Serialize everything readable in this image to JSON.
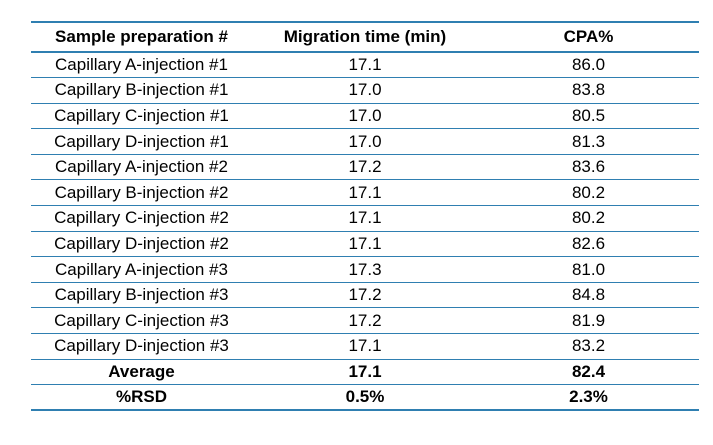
{
  "table": {
    "headers": [
      "Sample preparation #",
      "Migration time (min)",
      "CPA%"
    ],
    "rows": [
      [
        "Capillary A-injection #1",
        "17.1",
        "86.0"
      ],
      [
        "Capillary B-injection #1",
        "17.0",
        "83.8"
      ],
      [
        "Capillary C-injection #1",
        "17.0",
        "80.5"
      ],
      [
        "Capillary D-injection #1",
        "17.0",
        "81.3"
      ],
      [
        "Capillary A-injection #2",
        "17.2",
        "83.6"
      ],
      [
        "Capillary B-injection #2",
        "17.1",
        "80.2"
      ],
      [
        "Capillary C-injection #2",
        "17.1",
        "80.2"
      ],
      [
        "Capillary D-injection #2",
        "17.1",
        "82.6"
      ],
      [
        "Capillary A-injection #3",
        "17.3",
        "81.0"
      ],
      [
        "Capillary B-injection #3",
        "17.2",
        "84.8"
      ],
      [
        "Capillary C-injection #3",
        "17.2",
        "81.9"
      ],
      [
        "Capillary D-injection #3",
        "17.1",
        "83.2"
      ]
    ],
    "summary": [
      [
        "Average",
        "17.1",
        "82.4"
      ],
      [
        "%RSD",
        "0.5%",
        "2.3%"
      ]
    ]
  },
  "colors": {
    "rule": "#2f7fb1",
    "text": "#000000",
    "background": "#ffffff"
  }
}
